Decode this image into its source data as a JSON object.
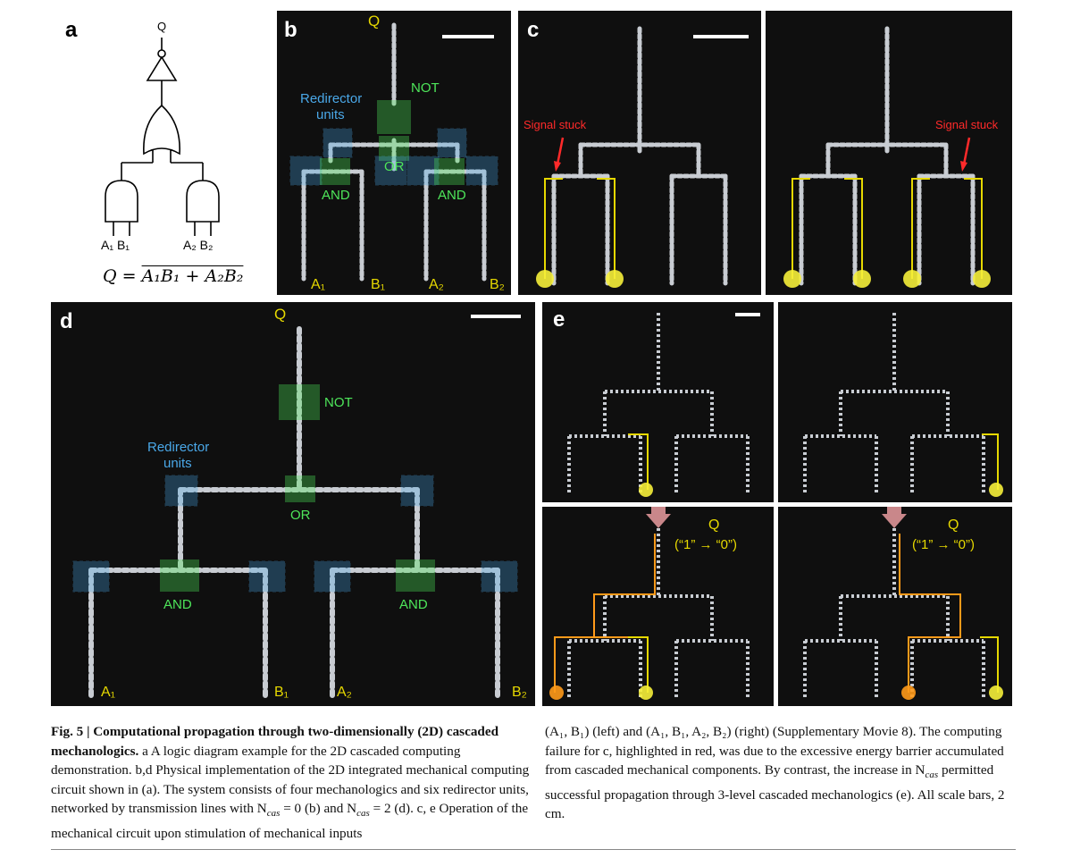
{
  "panel_labels": {
    "a": "a",
    "b": "b",
    "c": "c",
    "d": "d",
    "e": "e"
  },
  "panel_a": {
    "output": "Q",
    "inputs": [
      "A₁ B₁",
      "A₂ B₂"
    ],
    "equation": "Q = A₁B₁ + A₂B₂ (overlined)",
    "equation_display": "Q = ",
    "equation_rhs": "A₁B₁ + A₂B₂"
  },
  "panel_b": {
    "q": "Q",
    "not": "NOT",
    "redirector": "Redirector",
    "units": "units",
    "or": "OR",
    "and": "AND",
    "inputs": [
      "A₁",
      "B₁",
      "A₂",
      "B₂"
    ]
  },
  "panel_c": {
    "signal_stuck": "Signal stuck"
  },
  "panel_d": {
    "q": "Q",
    "not": "NOT",
    "redirector": "Redirector",
    "units": "units",
    "or": "OR",
    "and": "AND",
    "inputs": [
      "A₁",
      "B₁",
      "A₂",
      "B₂"
    ]
  },
  "panel_e": {
    "q": "Q",
    "transition": "(“1” → “0”)"
  },
  "colors": {
    "panel_bg": "#0f0f0f",
    "yellow": "#e6d800",
    "green": "#4ee65a",
    "blue": "#4aa8e8",
    "red": "#ff2a2a",
    "orange": "#ff9a1a"
  },
  "caption": {
    "fig": "Fig. 5 | Computational propagation through two-dimensionally (2D) cascaded mechanologics.",
    "left": [
      " a A logic diagram example for the 2D cascaded computing demonstration. ",
      "b,d Physical implementation of the 2D integrated mechanical computing circuit shown in (a). The system consists of four mechanologics and six redirector units, networked by transmission lines with N",
      "cas",
      " = 0 (b) and N",
      "cas",
      " = 2 (d). ",
      "c, e Operation of the mechanical circuit upon stimulation of mechanical inputs"
    ],
    "right": "(A₁, B₁) (left) and (A₁, B₁, A₂, B₂) (right) (Supplementary Movie 8). The computing failure for c, highlighted in red, was due to the excessive energy barrier accumulated from cascaded mechanical components. By contrast, the increase in N",
    "right2": "cas",
    "right3": " permitted successful propagation through 3-level cascaded mechanologics (e). All scale bars, 2 cm."
  }
}
